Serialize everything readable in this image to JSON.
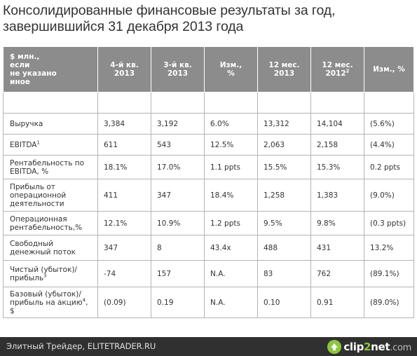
{
  "title": {
    "line1": "Консолидированные финансовые результаты за год,",
    "line2": "завершившийся  31 декабря 2013 года"
  },
  "table": {
    "headers": {
      "h0": [
        "$ млн.,",
        "если",
        "не указано",
        "иное"
      ],
      "h1": [
        "4-й кв.",
        "2013"
      ],
      "h2": [
        "3-й кв.",
        "2013"
      ],
      "h3": [
        "Изм.,",
        "%"
      ],
      "h4": [
        "12 мес.",
        "2013"
      ],
      "h5": [
        "12 мес.",
        "2012",
        "2"
      ],
      "h6": "Изм., %"
    },
    "rows": [
      {
        "label": "Выручка",
        "sup": "",
        "v1": "3,384",
        "v2": "3,192",
        "v3": "6.0%",
        "v4": "13,312",
        "v5": "14,104",
        "v6": "(5.6%)"
      },
      {
        "label": "EBITDA",
        "sup": "1",
        "v1": "611",
        "v2": "543",
        "v3": "12.5%",
        "v4": "2,063",
        "v5": "2,158",
        "v6": "(4.4%)"
      },
      {
        "label": "Рентабельность по EBITDA, %",
        "sup": "",
        "v1": "18.1%",
        "v2": "17.0%",
        "v3": "1.1 ppts",
        "v4": "15.5%",
        "v5": "15.3%",
        "v6": "0.2 ppts"
      },
      {
        "label": "Прибыль от операционной деятельности",
        "sup": "",
        "v1": "411",
        "v2": "347",
        "v3": "18.4%",
        "v4": "1,258",
        "v5": "1,383",
        "v6": "(9.0%)"
      },
      {
        "label": "Операционная рентабельность,%",
        "sup": "",
        "v1": "12.1%",
        "v2": "10.9%",
        "v3": "1.2 ppts",
        "v4": "9.5%",
        "v5": "9.8%",
        "v6": "(0.3 ppts)"
      },
      {
        "label": "Свободный денежный поток",
        "sup": "",
        "v1": "347",
        "v2": "8",
        "v3": "43.4x",
        "v4": "488",
        "v5": "431",
        "v6": "13.2%"
      },
      {
        "label": "Чистый (убыток)/прибыль",
        "sup": "3",
        "v1": "-74",
        "v2": "157",
        "v3": "N.A.",
        "v4": "83",
        "v5": "762",
        "v6": "(89.1%)"
      },
      {
        "label": "Базовый (убыток)/прибыль на акцию",
        "sup": "4",
        "suffix": ", $",
        "v1": "(0.09)",
        "v2": "0.19",
        "v3": "N.A.",
        "v4": "0.10",
        "v5": "0.91",
        "v6": "(89.0%)"
      }
    ]
  },
  "footer": {
    "source": "Элитный Трейдер, ELITETRADER.RU",
    "logo": {
      "part1": "clip",
      "part2": "2",
      "part3": "net",
      "part4": ".com"
    }
  },
  "colors": {
    "header_bg": "#8c8c8c",
    "footer_bg": "#303030",
    "logo_green": "#8dc63f"
  }
}
